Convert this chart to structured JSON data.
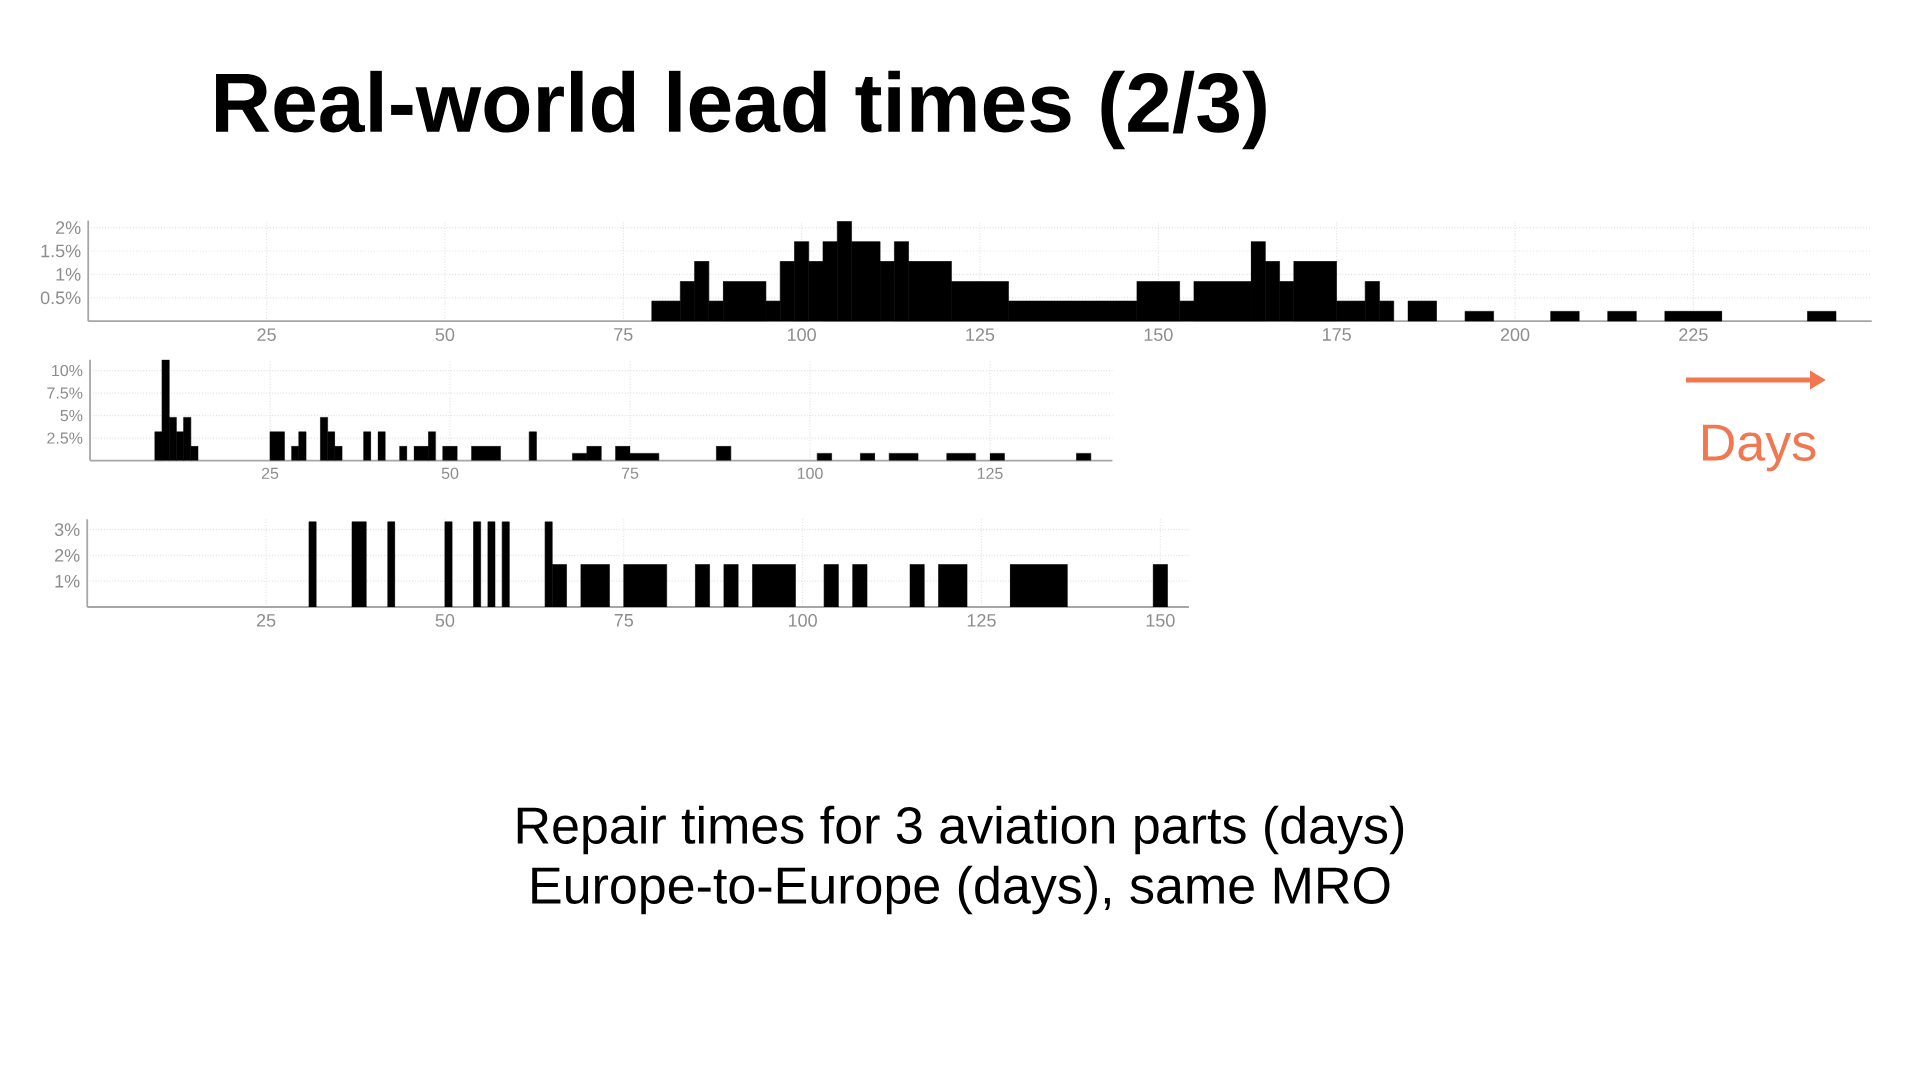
{
  "chart_data": [
    {
      "type": "histogram",
      "title": "Real-world lead times (2/3)",
      "bins": [
        79,
        83,
        85,
        87,
        89,
        95,
        97,
        99,
        101,
        103,
        105,
        107,
        111,
        113,
        115,
        121,
        129,
        147,
        153,
        155,
        163,
        165,
        167,
        169,
        175,
        179,
        181,
        183,
        185,
        189,
        193,
        197,
        205,
        209,
        213,
        217,
        221,
        229,
        241,
        245
      ],
      "values": [
        0.43,
        0.85,
        1.28,
        0.43,
        0.85,
        0.43,
        1.28,
        1.7,
        1.28,
        1.7,
        2.13,
        1.7,
        1.28,
        1.7,
        1.28,
        0.85,
        0.43,
        0.85,
        0.43,
        0.85,
        1.7,
        1.28,
        0.85,
        1.28,
        0.43,
        0.85,
        0.43,
        0,
        0.43,
        0,
        0.21,
        0,
        0.21,
        0,
        0.21,
        0,
        0.21,
        0,
        0.21
      ],
      "color": "#000000",
      "xlim": [
        0,
        250
      ],
      "ylim": [
        0,
        2.15
      ],
      "xticks": [
        25,
        50,
        75,
        100,
        125,
        150,
        175,
        200,
        225
      ],
      "yticks": [
        {
          "value": 0.5,
          "label": "0.5%"
        },
        {
          "value": 1,
          "label": "1%"
        },
        {
          "value": 1.5,
          "label": "1.5%"
        },
        {
          "value": 2,
          "label": "2%"
        }
      ],
      "grid": true
    },
    {
      "type": "histogram",
      "bins": [
        9,
        10,
        11,
        12,
        13,
        14,
        15,
        25,
        27,
        28,
        29,
        30,
        32,
        33,
        34,
        35,
        38,
        39,
        40,
        41,
        43,
        44,
        45,
        47,
        48,
        49,
        51,
        53,
        57,
        61,
        62,
        67,
        69,
        71,
        73,
        75,
        79,
        87,
        89,
        101,
        103,
        107,
        109,
        111,
        115,
        119,
        123,
        125,
        127,
        137,
        139
      ],
      "values": [
        3.2,
        11.2,
        4.8,
        3.2,
        4.8,
        1.6,
        0,
        3.2,
        0,
        1.6,
        3.2,
        0,
        4.8,
        3.2,
        1.6,
        0,
        3.2,
        0,
        3.2,
        0,
        1.6,
        0,
        1.6,
        3.2,
        0,
        1.6,
        0,
        1.6,
        0,
        3.2,
        0,
        0.8,
        1.6,
        0,
        1.6,
        0.8,
        0,
        1.6,
        0,
        0.8,
        0,
        0.8,
        0,
        0.8,
        0,
        0.8,
        0,
        0.8,
        0,
        0.8
      ],
      "color": "#000000",
      "xlim": [
        0,
        142
      ],
      "ylim": [
        0,
        11.2
      ],
      "xticks": [
        25,
        50,
        75,
        100,
        125
      ],
      "yticks": [
        {
          "value": 2.5,
          "label": "2.5%"
        },
        {
          "value": 5,
          "label": "5%"
        },
        {
          "value": 7.5,
          "label": "7.5%"
        },
        {
          "value": 10,
          "label": "10%"
        }
      ],
      "grid": true,
      "annotations": [
        "Days"
      ]
    },
    {
      "type": "histogram",
      "bins": [
        31,
        32,
        37,
        39,
        42,
        43,
        50,
        51,
        54,
        55,
        56,
        57,
        58,
        59,
        64,
        65,
        67,
        69,
        73,
        75,
        81,
        85,
        87,
        89,
        91,
        93,
        99,
        103,
        105,
        107,
        109,
        115,
        117,
        119,
        123,
        129,
        137,
        149,
        151
      ],
      "values": [
        3.3,
        0,
        3.3,
        0,
        3.3,
        0,
        3.3,
        0,
        3.3,
        0,
        3.3,
        0,
        3.3,
        0,
        3.3,
        1.65,
        0,
        1.65,
        0,
        1.65,
        0,
        1.65,
        0,
        1.65,
        0,
        1.65,
        0,
        1.65,
        0,
        1.65,
        0,
        1.65,
        0,
        1.65,
        0,
        1.65,
        0,
        1.65
      ],
      "color": "#000000",
      "xlim": [
        0,
        154
      ],
      "ylim": [
        0,
        3.4
      ],
      "xticks": [
        25,
        50,
        75,
        100,
        125,
        150
      ],
      "yticks": [
        {
          "value": 1,
          "label": "1%"
        },
        {
          "value": 2,
          "label": "2%"
        },
        {
          "value": 3,
          "label": "3%"
        }
      ],
      "grid": true,
      "annotations": [
        "Repair times for 3 aviation parts (days)",
        "Europe-to-Europe (days), same MRO"
      ]
    }
  ]
}
